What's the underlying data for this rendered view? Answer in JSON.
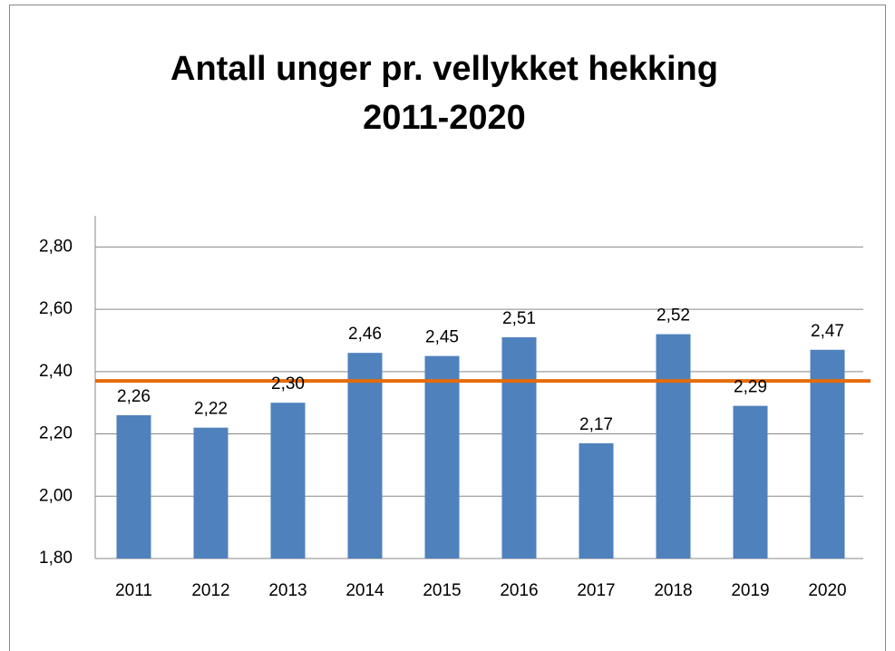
{
  "chart_data": {
    "type": "bar",
    "title": [
      "Antall unger pr. vellykket hekking",
      "2011-2020"
    ],
    "categories": [
      "2011",
      "2012",
      "2013",
      "2014",
      "2015",
      "2016",
      "2017",
      "2018",
      "2019",
      "2020"
    ],
    "values": [
      2.26,
      2.22,
      2.3,
      2.46,
      2.45,
      2.51,
      2.17,
      2.52,
      2.29,
      2.47
    ],
    "value_labels": [
      "2,26",
      "2,22",
      "2,30",
      "2,46",
      "2,45",
      "2,51",
      "2,17",
      "2,52",
      "2,29",
      "2,47"
    ],
    "color": "#4f81bd",
    "ylim": [
      1.8,
      2.9
    ],
    "yticks": [
      {
        "value": 1.8,
        "label": "1,80"
      },
      {
        "value": 2.0,
        "label": "2,00"
      },
      {
        "value": 2.2,
        "label": "2,20"
      },
      {
        "value": 2.4,
        "label": "2,40"
      },
      {
        "value": 2.6,
        "label": "2,60"
      },
      {
        "value": 2.8,
        "label": "2,80"
      }
    ],
    "grid": true,
    "reference_line": {
      "value": 2.37,
      "color": "#e46c0a"
    }
  }
}
